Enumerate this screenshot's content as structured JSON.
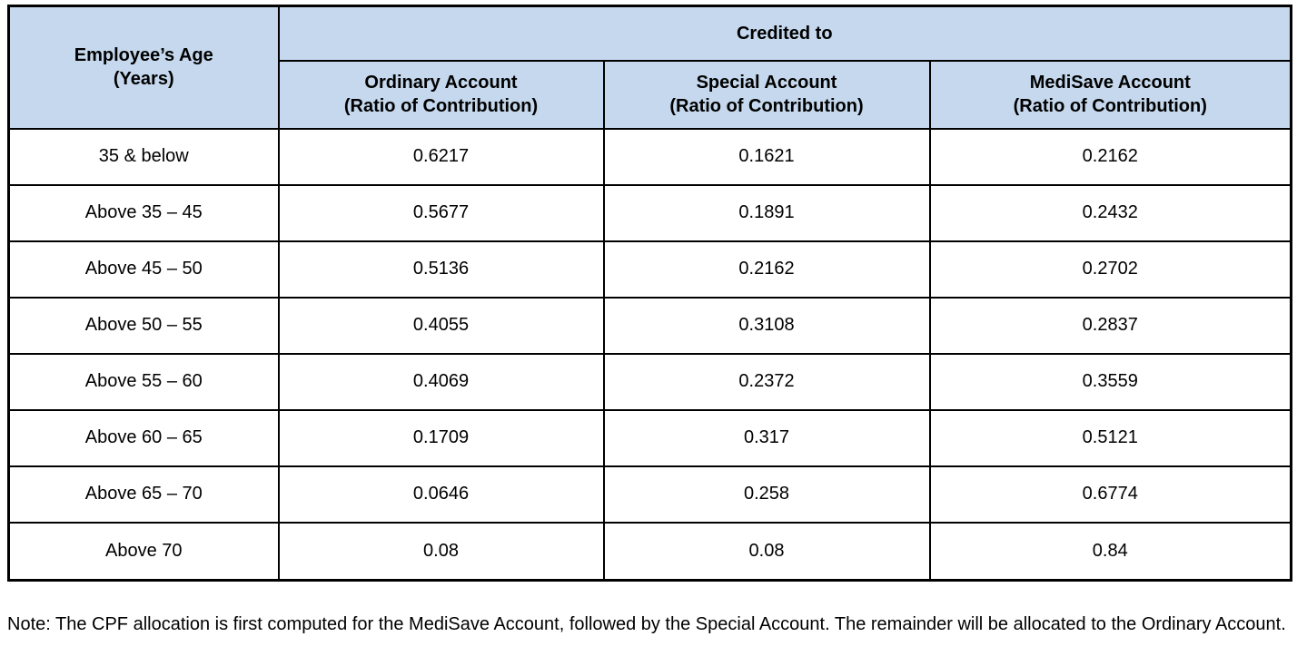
{
  "colors": {
    "header_bg": "#c5d8ed",
    "border": "#000000",
    "text": "#000000"
  },
  "table": {
    "header": {
      "age_label": "Employee’s Age\n(Years)",
      "credited_to": "Credited to",
      "columns": [
        "Ordinary Account\n(Ratio of Contribution)",
        "Special Account\n(Ratio of Contribution)",
        "MediSave Account\n(Ratio of Contribution)"
      ]
    },
    "rows": [
      {
        "age": "35 & below",
        "ordinary": "0.6217",
        "special": "0.1621",
        "medisave": "0.2162"
      },
      {
        "age": "Above 35 – 45",
        "ordinary": "0.5677",
        "special": "0.1891",
        "medisave": "0.2432"
      },
      {
        "age": "Above 45 – 50",
        "ordinary": "0.5136",
        "special": "0.2162",
        "medisave": "0.2702"
      },
      {
        "age": "Above 50 – 55",
        "ordinary": "0.4055",
        "special": "0.3108",
        "medisave": "0.2837"
      },
      {
        "age": "Above 55 – 60",
        "ordinary": "0.4069",
        "special": "0.2372",
        "medisave": "0.3559"
      },
      {
        "age": "Above 60 – 65",
        "ordinary": "0.1709",
        "special": "0.317",
        "medisave": "0.5121"
      },
      {
        "age": "Above 65 – 70",
        "ordinary": "0.0646",
        "special": "0.258",
        "medisave": "0.6774"
      },
      {
        "age": "Above 70",
        "ordinary": "0.08",
        "special": "0.08",
        "medisave": "0.84"
      }
    ]
  },
  "note": "Note: The CPF allocation is first computed for the MediSave Account, followed by the Special Account. The remainder will be allocated to the Ordinary Account."
}
